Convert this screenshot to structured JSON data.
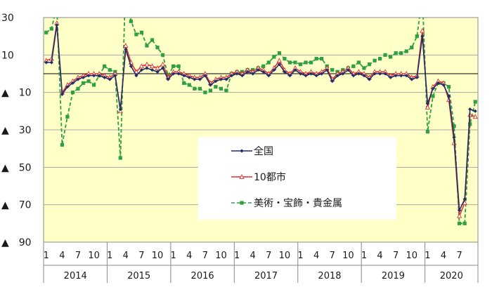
{
  "chart_data": {
    "type": "line",
    "y_tick_labels": [
      "30",
      "10",
      "▲　10",
      "▲　30",
      "▲　50",
      "▲　70",
      "▲　90"
    ],
    "y_ticks": [
      30,
      10,
      -10,
      -30,
      -50,
      -70,
      -90
    ],
    "ylim": [
      -90,
      30
    ],
    "x_month_labels": [
      "1",
      "4",
      "7",
      "10"
    ],
    "x_last_month_labels": [
      "1",
      "4",
      "7"
    ],
    "years": [
      "2014",
      "2015",
      "2016",
      "2017",
      "2018",
      "2019",
      "2020"
    ],
    "x_start": "2014-01",
    "x_end": "2020-07",
    "legend_position": "center",
    "colors": {
      "zenkoku": "#1f2d6b",
      "toshi": "#e03030",
      "bijutsu": "#2ea043",
      "plot_bg": "#ffffc8",
      "legend_bg": "#ffffff"
    },
    "series": [
      {
        "key": "zenkoku",
        "name": "全国",
        "values": [
          6,
          6,
          26,
          -11,
          -7,
          -5,
          -3,
          -2,
          -1,
          -1,
          -1,
          -2,
          -3,
          -1,
          -19,
          13,
          4,
          -1,
          2,
          3,
          2,
          1,
          3,
          -3,
          0,
          0,
          -1,
          -2,
          -3,
          -3,
          -1,
          -6,
          -4,
          -3,
          -3,
          -1,
          0,
          -1,
          1,
          0,
          2,
          1,
          -1,
          2,
          5,
          1,
          -1,
          2,
          0,
          -1,
          0,
          -1,
          0,
          2,
          -4,
          -1,
          0,
          2,
          -1,
          0,
          -1,
          -3,
          0,
          0,
          0,
          -2,
          -1,
          -1,
          -1,
          -3,
          -2,
          20,
          -16,
          -8,
          -5,
          -6,
          -12,
          -34,
          -73,
          -67,
          -19,
          -20
        ]
      },
      {
        "key": "toshi",
        "name": "10都市",
        "values": [
          7,
          8,
          27,
          -10,
          -6,
          -4,
          -2,
          -1,
          0,
          0,
          0,
          -1,
          -2,
          0,
          -20,
          15,
          6,
          1,
          4,
          5,
          4,
          3,
          5,
          -2,
          1,
          1,
          0,
          -1,
          -2,
          -2,
          0,
          -5,
          -3,
          -2,
          -2,
          0,
          1,
          0,
          2,
          1,
          3,
          2,
          0,
          3,
          7,
          2,
          0,
          3,
          1,
          0,
          1,
          0,
          1,
          3,
          -3,
          0,
          1,
          3,
          0,
          1,
          0,
          -2,
          1,
          1,
          1,
          -1,
          0,
          0,
          0,
          -2,
          -1,
          23,
          -18,
          -7,
          -4,
          -5,
          -14,
          -37,
          -76,
          -69,
          -22,
          -23
        ]
      },
      {
        "key": "bijutsu",
        "name": "美術・宝飾・貴金属",
        "values": [
          22,
          24,
          36,
          -38,
          -23,
          -10,
          -8,
          -5,
          -4,
          -6,
          -1,
          4,
          2,
          1,
          -45,
          50,
          28,
          21,
          22,
          15,
          18,
          14,
          10,
          -1,
          4,
          4,
          -5,
          -6,
          -8,
          -8,
          -10,
          -9,
          -7,
          -8,
          -9,
          0,
          1,
          1,
          2,
          2,
          3,
          4,
          6,
          9,
          11,
          8,
          6,
          6,
          5,
          6,
          6,
          8,
          8,
          4,
          2,
          1,
          2,
          3,
          4,
          6,
          3,
          5,
          7,
          8,
          10,
          9,
          11,
          11,
          12,
          14,
          20,
          42,
          -31,
          -12,
          -5,
          -5,
          -7,
          -28,
          -80,
          -80,
          -27,
          -15
        ]
      }
    ]
  }
}
